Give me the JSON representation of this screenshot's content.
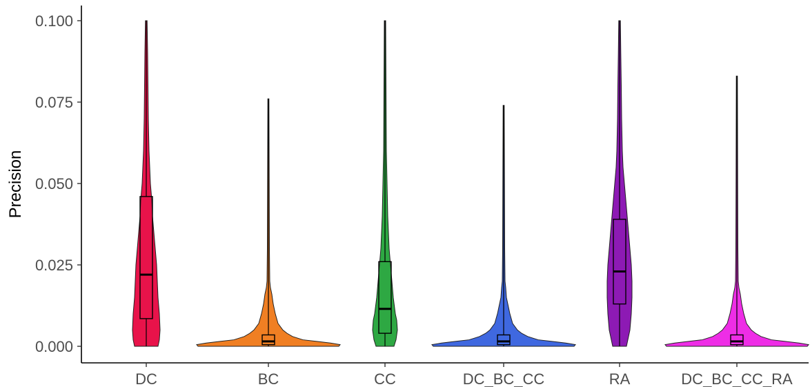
{
  "chart_data": {
    "type": "violin",
    "title": "",
    "xlabel": "",
    "ylabel": "Precision",
    "ylim": [
      0,
      0.1
    ],
    "yticks": [
      {
        "value": 0.0,
        "label": "0.000"
      },
      {
        "value": 0.025,
        "label": "0.025"
      },
      {
        "value": 0.05,
        "label": "0.050"
      },
      {
        "value": 0.075,
        "label": "0.075"
      },
      {
        "value": 0.1,
        "label": "0.100"
      }
    ],
    "grid": false,
    "legend": "none",
    "categories": [
      "DC",
      "BC",
      "CC",
      "DC_BC_CC",
      "RA",
      "DC_BC_CC_RA"
    ],
    "series": [
      {
        "category": "DC",
        "color": "#E8134A",
        "min": 0.0,
        "q1": 0.0085,
        "median": 0.022,
        "q3": 0.046,
        "max": 0.1,
        "density": [
          [
            0.0,
            17
          ],
          [
            0.002,
            19
          ],
          [
            0.005,
            20
          ],
          [
            0.01,
            19
          ],
          [
            0.015,
            17
          ],
          [
            0.02,
            16
          ],
          [
            0.025,
            15
          ],
          [
            0.03,
            13
          ],
          [
            0.035,
            11
          ],
          [
            0.04,
            9
          ],
          [
            0.045,
            8
          ],
          [
            0.05,
            6
          ],
          [
            0.055,
            5
          ],
          [
            0.06,
            4
          ],
          [
            0.07,
            3
          ],
          [
            0.08,
            2.5
          ],
          [
            0.09,
            2
          ],
          [
            0.1,
            1.2
          ]
        ]
      },
      {
        "category": "BC",
        "color": "#F07F23",
        "min": 0.0,
        "q1": 0.0005,
        "median": 0.0015,
        "q3": 0.0035,
        "max": 0.076,
        "density": [
          [
            0.0,
            102
          ],
          [
            0.0005,
            104
          ],
          [
            0.001,
            90
          ],
          [
            0.0015,
            70
          ],
          [
            0.002,
            50
          ],
          [
            0.003,
            35
          ],
          [
            0.004,
            27
          ],
          [
            0.005,
            21
          ],
          [
            0.007,
            14
          ],
          [
            0.01,
            10
          ],
          [
            0.013,
            7
          ],
          [
            0.016,
            5
          ],
          [
            0.018,
            3
          ],
          [
            0.02,
            2
          ],
          [
            0.03,
            1.5
          ],
          [
            0.05,
            1.2
          ],
          [
            0.076,
            0.8
          ]
        ]
      },
      {
        "category": "CC",
        "color": "#2EA843",
        "min": 0.0,
        "q1": 0.004,
        "median": 0.0115,
        "q3": 0.026,
        "max": 0.1,
        "density": [
          [
            0.0,
            13
          ],
          [
            0.002,
            16
          ],
          [
            0.005,
            18
          ],
          [
            0.008,
            17
          ],
          [
            0.01,
            15
          ],
          [
            0.015,
            12
          ],
          [
            0.02,
            10
          ],
          [
            0.025,
            8
          ],
          [
            0.03,
            6
          ],
          [
            0.035,
            5
          ],
          [
            0.04,
            4
          ],
          [
            0.05,
            3
          ],
          [
            0.06,
            2
          ],
          [
            0.08,
            1.5
          ],
          [
            0.1,
            1
          ]
        ]
      },
      {
        "category": "DC_BC_CC",
        "color": "#3F68E0",
        "min": 0.0,
        "q1": 0.0005,
        "median": 0.0015,
        "q3": 0.0035,
        "max": 0.074,
        "density": [
          [
            0.0,
            102
          ],
          [
            0.0005,
            104
          ],
          [
            0.001,
            90
          ],
          [
            0.0015,
            70
          ],
          [
            0.002,
            50
          ],
          [
            0.003,
            35
          ],
          [
            0.004,
            26
          ],
          [
            0.005,
            20
          ],
          [
            0.007,
            13
          ],
          [
            0.01,
            9
          ],
          [
            0.012,
            7
          ],
          [
            0.015,
            4
          ],
          [
            0.018,
            3
          ],
          [
            0.02,
            2
          ],
          [
            0.03,
            1.5
          ],
          [
            0.05,
            1.2
          ],
          [
            0.074,
            0.8
          ]
        ]
      },
      {
        "category": "RA",
        "color": "#8D1AB4",
        "min": 0.0,
        "q1": 0.013,
        "median": 0.023,
        "q3": 0.039,
        "max": 0.1,
        "density": [
          [
            0.0,
            10
          ],
          [
            0.005,
            15
          ],
          [
            0.01,
            17
          ],
          [
            0.015,
            18
          ],
          [
            0.02,
            18
          ],
          [
            0.025,
            17
          ],
          [
            0.03,
            15
          ],
          [
            0.035,
            13
          ],
          [
            0.04,
            11
          ],
          [
            0.045,
            9
          ],
          [
            0.05,
            7
          ],
          [
            0.055,
            5
          ],
          [
            0.06,
            4
          ],
          [
            0.07,
            3
          ],
          [
            0.08,
            2.5
          ],
          [
            0.09,
            1.8
          ],
          [
            0.1,
            1.2
          ]
        ]
      },
      {
        "category": "DC_BC_CC_RA",
        "color": "#EE2DE6",
        "min": 0.0,
        "q1": 0.0005,
        "median": 0.0015,
        "q3": 0.0035,
        "max": 0.083,
        "density": [
          [
            0.0,
            102
          ],
          [
            0.0005,
            104
          ],
          [
            0.001,
            90
          ],
          [
            0.0015,
            70
          ],
          [
            0.002,
            50
          ],
          [
            0.003,
            35
          ],
          [
            0.004,
            27
          ],
          [
            0.005,
            21
          ],
          [
            0.007,
            14
          ],
          [
            0.01,
            10
          ],
          [
            0.013,
            7
          ],
          [
            0.016,
            5
          ],
          [
            0.018,
            3
          ],
          [
            0.02,
            2
          ],
          [
            0.03,
            1.5
          ],
          [
            0.05,
            1.2
          ],
          [
            0.083,
            0.8
          ]
        ]
      }
    ]
  }
}
